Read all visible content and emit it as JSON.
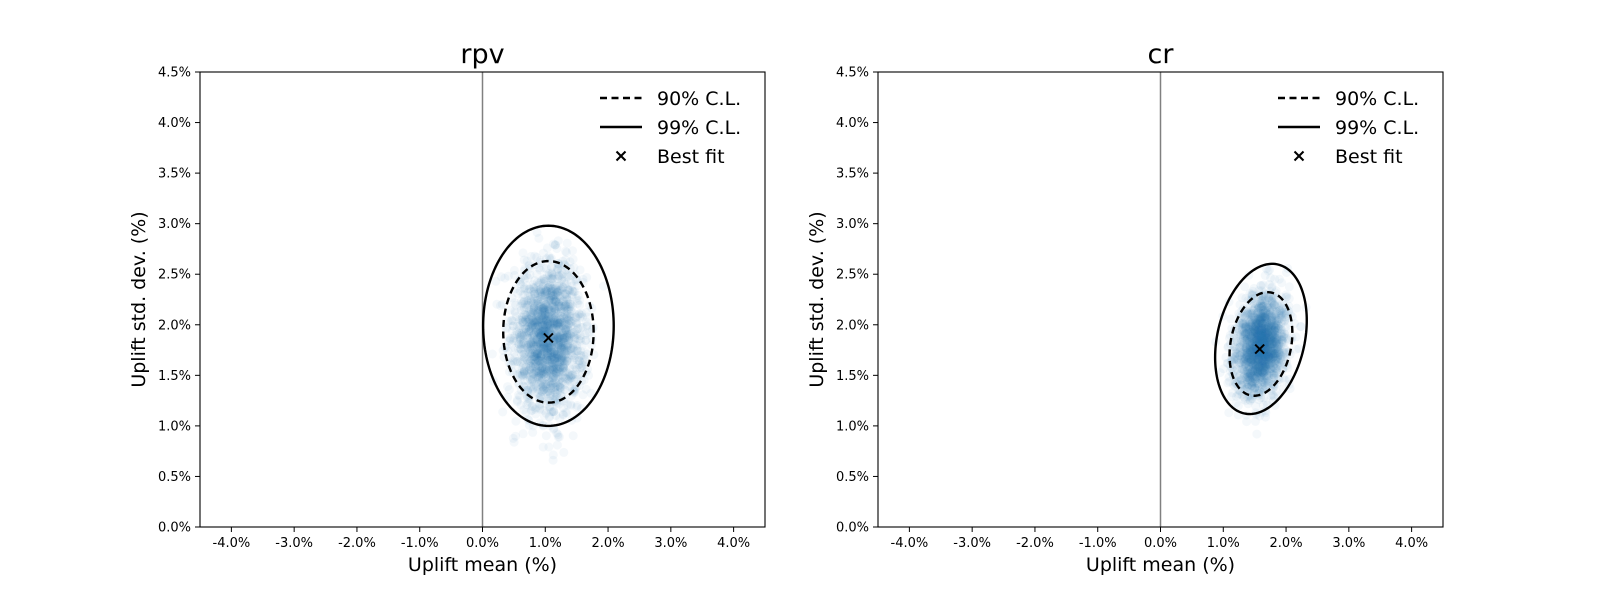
{
  "chart_data": [
    {
      "type": "scatter",
      "title": "rpv",
      "xlabel": "Uplift mean (%)",
      "ylabel": "Uplift std. dev. (%)",
      "xlim": [
        -4.5,
        4.5
      ],
      "ylim": [
        0,
        4.5
      ],
      "x_ticks": [
        -4,
        -3,
        -2,
        -1,
        0,
        1,
        2,
        3,
        4
      ],
      "x_tick_labels": [
        "-4.0%",
        "-3.0%",
        "-2.0%",
        "-1.0%",
        "0.0%",
        "1.0%",
        "2.0%",
        "3.0%",
        "4.0%"
      ],
      "y_ticks": [
        0,
        0.5,
        1,
        1.5,
        2,
        2.5,
        3,
        3.5,
        4,
        4.5
      ],
      "y_tick_labels": [
        "0.0%",
        "0.5%",
        "1.0%",
        "1.5%",
        "2.0%",
        "2.5%",
        "3.0%",
        "3.5%",
        "4.0%",
        "4.5%"
      ],
      "reference_line_x": 0,
      "best_fit": {
        "x": 1.05,
        "y": 1.87
      },
      "posterior_samples": {
        "color": "#1f77b4",
        "center": [
          1.05,
          1.87
        ],
        "spread": [
          0.28,
          0.36
        ],
        "tilt": 0.0
      },
      "contours": [
        {
          "name": "90% C.L.",
          "style": "dashed",
          "center": [
            1.05,
            1.93
          ],
          "half_width": 0.72,
          "half_height": 0.7,
          "tilt": 0.0
        },
        {
          "name": "99% C.L.",
          "style": "solid",
          "center": [
            1.05,
            1.99
          ],
          "half_width": 1.04,
          "half_height": 0.99,
          "tilt": 0.0
        }
      ],
      "legend": {
        "position": "top-right",
        "entries": [
          "90% C.L.",
          "99% C.L.",
          "Best fit"
        ]
      },
      "grid": false
    },
    {
      "type": "scatter",
      "title": "cr",
      "xlabel": "Uplift mean (%)",
      "ylabel": "Uplift std. dev. (%)",
      "xlim": [
        -4.5,
        4.5
      ],
      "ylim": [
        0,
        4.5
      ],
      "x_ticks": [
        -4,
        -3,
        -2,
        -1,
        0,
        1,
        2,
        3,
        4
      ],
      "x_tick_labels": [
        "-4.0%",
        "-3.0%",
        "-2.0%",
        "-1.0%",
        "0.0%",
        "1.0%",
        "2.0%",
        "3.0%",
        "4.0%"
      ],
      "y_ticks": [
        0,
        0.5,
        1,
        1.5,
        2,
        2.5,
        3,
        3.5,
        4,
        4.5
      ],
      "y_tick_labels": [
        "0.0%",
        "0.5%",
        "1.0%",
        "1.5%",
        "2.0%",
        "2.5%",
        "3.0%",
        "3.5%",
        "4.0%",
        "4.5%"
      ],
      "reference_line_x": 0,
      "best_fit": {
        "x": 1.58,
        "y": 1.76
      },
      "posterior_samples": {
        "color": "#1f77b4",
        "center": [
          1.6,
          1.8
        ],
        "spread": [
          0.2,
          0.24
        ],
        "tilt": 0.28
      },
      "contours": [
        {
          "name": "90% C.L.",
          "style": "dashed",
          "center": [
            1.6,
            1.81
          ],
          "half_width": 0.5,
          "half_height": 0.5,
          "tilt": 0.22
        },
        {
          "name": "99% C.L.",
          "style": "solid",
          "center": [
            1.6,
            1.86
          ],
          "half_width": 0.73,
          "half_height": 0.72,
          "tilt": 0.25
        }
      ],
      "legend": {
        "position": "top-right",
        "entries": [
          "90% C.L.",
          "99% C.L.",
          "Best fit"
        ]
      },
      "grid": false
    }
  ]
}
